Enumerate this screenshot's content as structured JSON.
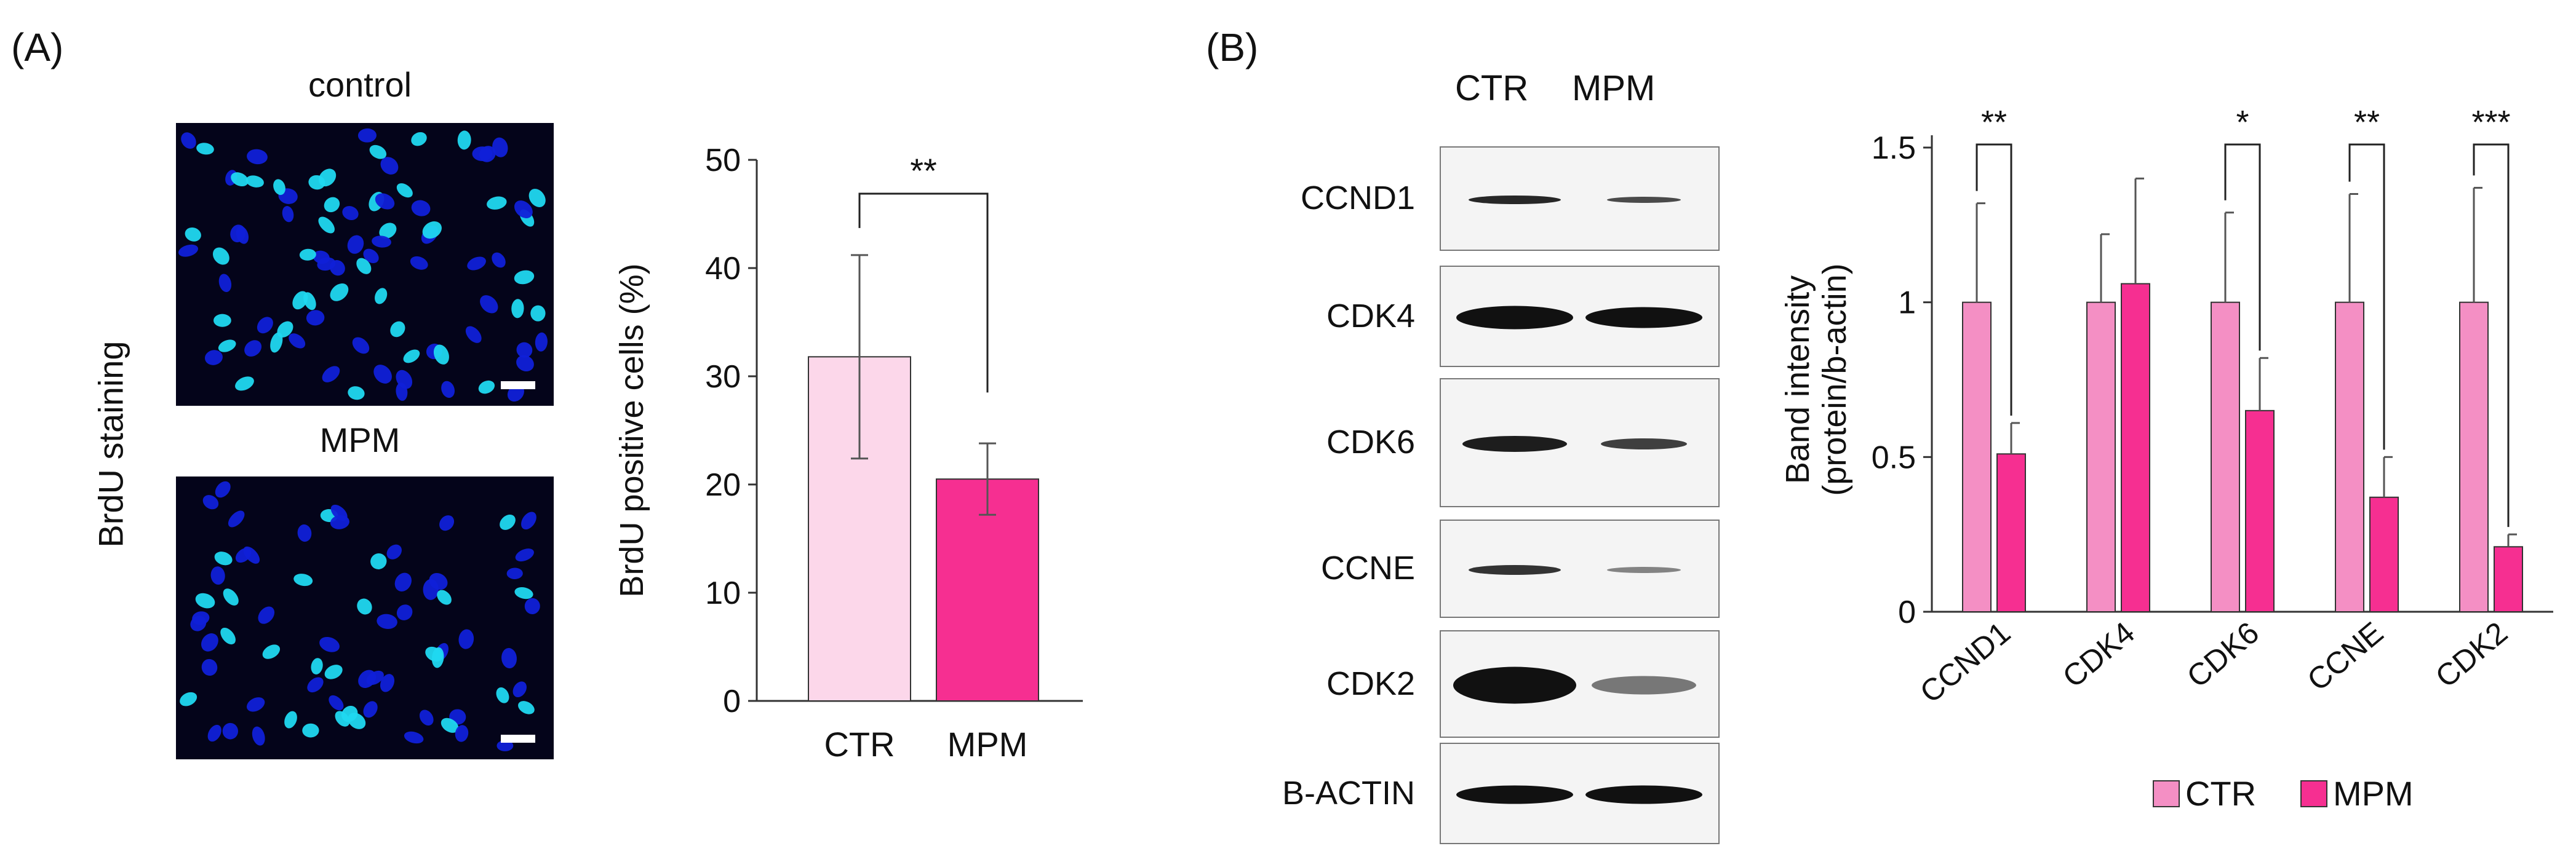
{
  "panel_a": {
    "label": "(A)",
    "side_label": "BrdU staining",
    "image_titles": [
      "control",
      "MPM"
    ],
    "micro_colors": {
      "background": "#04041a",
      "nucleus_dim": "#1020d8",
      "nucleus_bright": "#20d8f0"
    }
  },
  "panel_b": {
    "label": "(B)",
    "blot_headers": [
      "CTR",
      "MPM"
    ],
    "blot_labels": [
      "CCND1",
      "CDK4",
      "CDK6",
      "CCNE",
      "CDK2",
      "B-ACTIN"
    ]
  },
  "colors": {
    "ctr_light": "#fcd7ea",
    "ctr_bar": "#f48fc4",
    "mpm_bar": "#f62f91"
  },
  "chart_data": [
    {
      "type": "bar",
      "categories": [
        "CTR",
        "MPM"
      ],
      "values": [
        31.8,
        20.5
      ],
      "errors": [
        9.4,
        3.3
      ],
      "ylabel": "BrdU positive cells (%)",
      "yticks": [
        "0",
        "10",
        "20",
        "30",
        "40",
        "50"
      ],
      "ylim": [
        0,
        50
      ],
      "significance": [
        {
          "label": "**"
        }
      ]
    },
    {
      "type": "bar",
      "categories": [
        "CCND1",
        "CDK4",
        "CDK6",
        "CCNE",
        "CDK2"
      ],
      "series": [
        {
          "name": "CTR",
          "values": [
            1.0,
            1.0,
            1.0,
            1.0,
            1.0
          ],
          "errors": [
            0.32,
            0.22,
            0.29,
            0.35,
            0.37
          ]
        },
        {
          "name": "MPM",
          "values": [
            0.51,
            1.06,
            0.65,
            0.37,
            0.21
          ],
          "errors": [
            0.1,
            0.34,
            0.17,
            0.13,
            0.04
          ]
        }
      ],
      "ylabel_lines": [
        "Band intensity",
        "(protein/b-actin)"
      ],
      "yticks": [
        "0",
        "0.5",
        "1",
        "1.5"
      ],
      "ylim": [
        0,
        1.5
      ],
      "significance": [
        "**",
        "",
        "*",
        "**",
        "***"
      ],
      "legend": "bottom"
    }
  ]
}
